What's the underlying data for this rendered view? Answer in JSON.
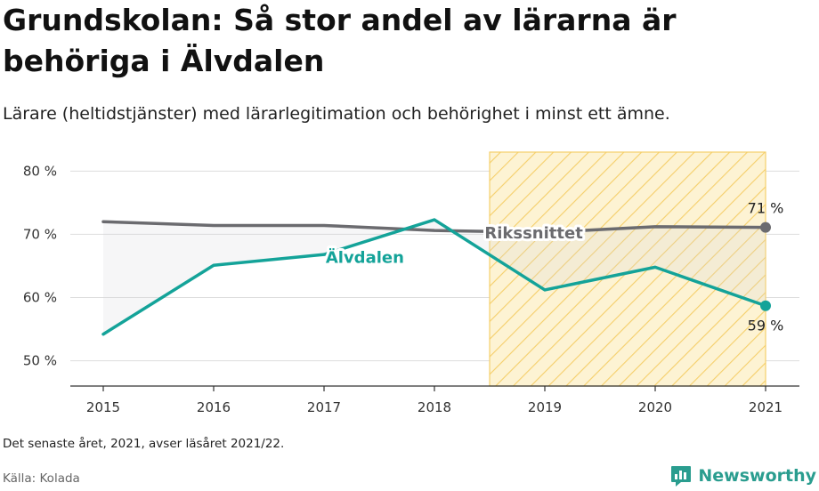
{
  "header": {
    "title": "Grundskolan: Så stor andel av lärarna är behöriga i Älvdalen",
    "subtitle": "Lärare (heltidstjänster) med lärarlegitimation och behörighet i minst ett ämne."
  },
  "footer": {
    "note": "Det senaste året, 2021, avser läsåret 2021/22.",
    "source": "Källa: Kolada",
    "brand": "Newsworthy"
  },
  "colors": {
    "alvdalen": "#14a399",
    "riksnittet": "#6b6b6f",
    "highlight_fill": "#fdf3d3",
    "highlight_stroke": "#f5cf6a",
    "grid": "#dddddd",
    "brand": "#2a9d8f"
  },
  "chart_data": {
    "type": "line",
    "x": [
      2015,
      2016,
      2017,
      2018,
      2019,
      2020,
      2021
    ],
    "ylim": [
      46,
      83
    ],
    "y_ticks": [
      50,
      60,
      70,
      80
    ],
    "y_tick_labels": [
      "50 %",
      "60 %",
      "70 %",
      "80 %"
    ],
    "x_tick_labels": [
      "2015",
      "2016",
      "2017",
      "2018",
      "2019",
      "2020",
      "2021"
    ],
    "series": [
      {
        "name": "Rikssnittet",
        "values": [
          72.0,
          71.4,
          71.4,
          70.6,
          70.3,
          71.2,
          71.1
        ]
      },
      {
        "name": "Älvdalen",
        "values": [
          54.2,
          65.1,
          66.8,
          72.3,
          61.2,
          64.8,
          58.7
        ]
      }
    ],
    "highlight_range": [
      2018.5,
      2021
    ],
    "end_labels": {
      "Rikssnittet": "71 %",
      "Älvdalen": "59 %"
    },
    "grid": true
  }
}
